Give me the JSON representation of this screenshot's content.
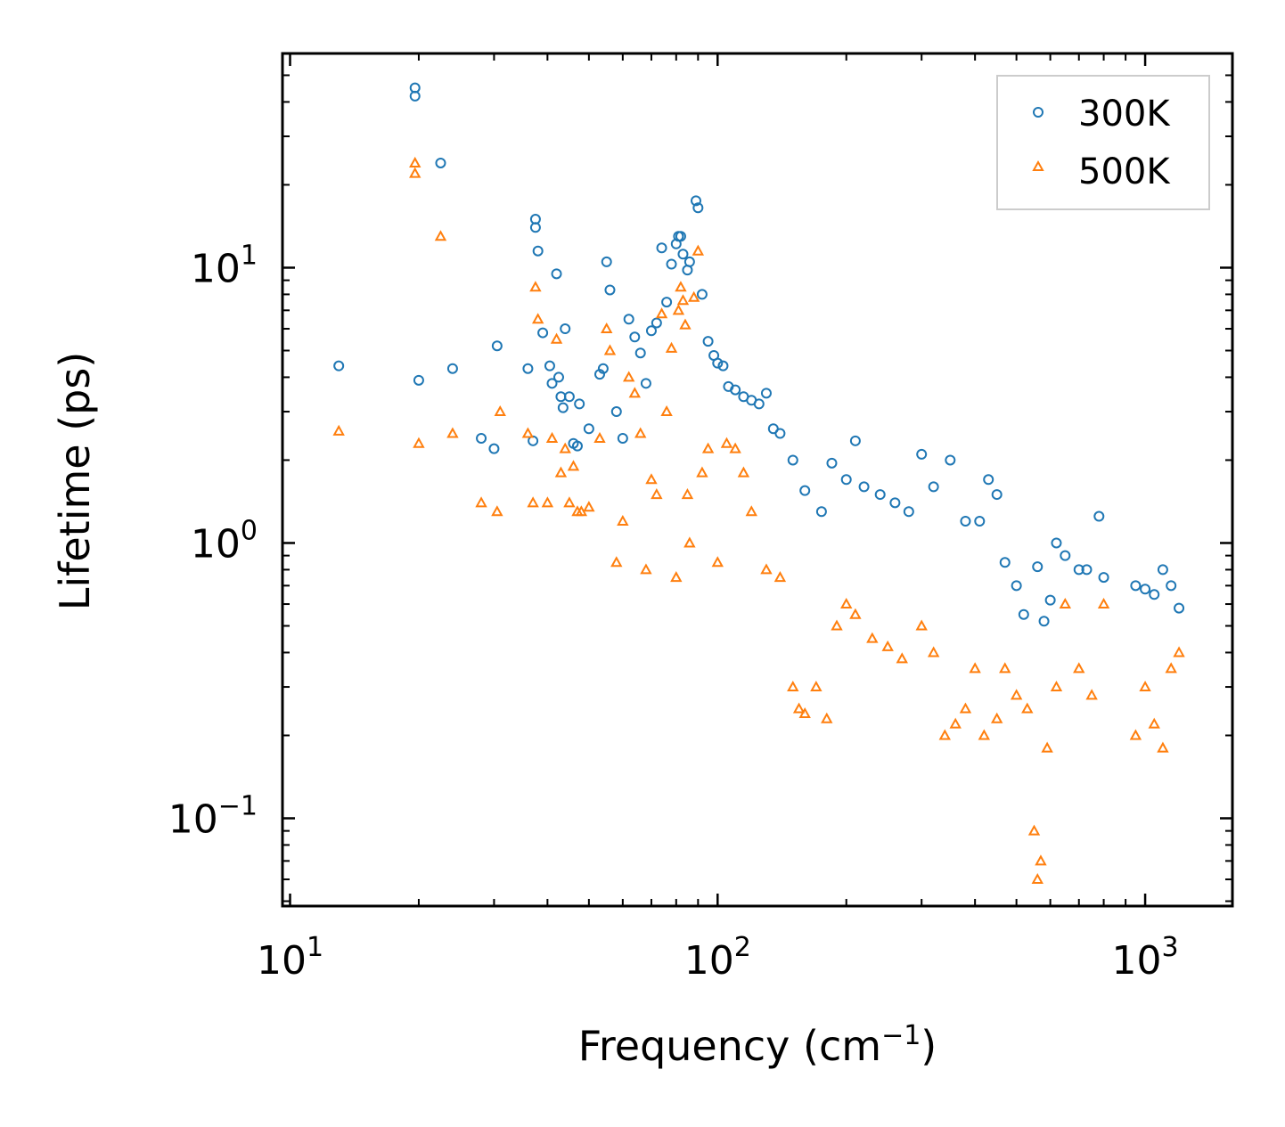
{
  "chart_data": {
    "type": "scatter",
    "title": "",
    "xlabel": "Frequency (cm",
    "xlabel_sup": "−1",
    "xlabel_close": ")",
    "ylabel": "Lifetime (ps)",
    "xscale": "log",
    "yscale": "log",
    "xlim": [
      9.6,
      1600
    ],
    "ylim": [
      0.048,
      60
    ],
    "x_ticks": [
      {
        "value": 10,
        "base": "10",
        "exp": "1"
      },
      {
        "value": 100,
        "base": "10",
        "exp": "2"
      },
      {
        "value": 1000,
        "base": "10",
        "exp": "3"
      }
    ],
    "y_ticks": [
      {
        "value": 0.1,
        "base": "10",
        "exp": "−1"
      },
      {
        "value": 1,
        "base": "10",
        "exp": "0"
      },
      {
        "value": 10,
        "base": "10",
        "exp": "1"
      }
    ],
    "legend_position": "top-right",
    "series": [
      {
        "name": "300K",
        "color": "#1f77b4",
        "marker": "circle",
        "points": [
          [
            13,
            4.4
          ],
          [
            19.6,
            45
          ],
          [
            19.6,
            42
          ],
          [
            20,
            3.9
          ],
          [
            22.5,
            24
          ],
          [
            24,
            4.3
          ],
          [
            28,
            2.4
          ],
          [
            30,
            2.2
          ],
          [
            30.5,
            5.2
          ],
          [
            36,
            4.3
          ],
          [
            37,
            2.35
          ],
          [
            37.5,
            15
          ],
          [
            37.5,
            14
          ],
          [
            38,
            11.5
          ],
          [
            39,
            5.8
          ],
          [
            40.5,
            4.4
          ],
          [
            41,
            3.8
          ],
          [
            42,
            9.5
          ],
          [
            42.5,
            4.0
          ],
          [
            43,
            3.4
          ],
          [
            43.5,
            3.1
          ],
          [
            44,
            6.0
          ],
          [
            45,
            3.4
          ],
          [
            46,
            2.3
          ],
          [
            47,
            2.25
          ],
          [
            47.5,
            3.2
          ],
          [
            50,
            2.6
          ],
          [
            53,
            4.1
          ],
          [
            54,
            4.3
          ],
          [
            55,
            10.5
          ],
          [
            56,
            8.3
          ],
          [
            58,
            3.0
          ],
          [
            60,
            2.4
          ],
          [
            62,
            6.5
          ],
          [
            64,
            5.6
          ],
          [
            66,
            4.9
          ],
          [
            68,
            3.8
          ],
          [
            70,
            5.9
          ],
          [
            72,
            6.3
          ],
          [
            74,
            11.8
          ],
          [
            76,
            7.5
          ],
          [
            78,
            10.3
          ],
          [
            80,
            12.2
          ],
          [
            81,
            13
          ],
          [
            82,
            13
          ],
          [
            83,
            11.2
          ],
          [
            85,
            9.8
          ],
          [
            86,
            10.5
          ],
          [
            89,
            17.5
          ],
          [
            90,
            16.5
          ],
          [
            92,
            8.0
          ],
          [
            95,
            5.4
          ],
          [
            98,
            4.8
          ],
          [
            100,
            4.5
          ],
          [
            103,
            4.4
          ],
          [
            106,
            3.7
          ],
          [
            110,
            3.6
          ],
          [
            115,
            3.4
          ],
          [
            120,
            3.3
          ],
          [
            125,
            3.2
          ],
          [
            130,
            3.5
          ],
          [
            135,
            2.6
          ],
          [
            140,
            2.5
          ],
          [
            150,
            2.0
          ],
          [
            160,
            1.55
          ],
          [
            175,
            1.3
          ],
          [
            185,
            1.95
          ],
          [
            200,
            1.7
          ],
          [
            210,
            2.35
          ],
          [
            220,
            1.6
          ],
          [
            240,
            1.5
          ],
          [
            260,
            1.4
          ],
          [
            280,
            1.3
          ],
          [
            300,
            2.1
          ],
          [
            320,
            1.6
          ],
          [
            350,
            2.0
          ],
          [
            380,
            1.2
          ],
          [
            410,
            1.2
          ],
          [
            430,
            1.7
          ],
          [
            450,
            1.5
          ],
          [
            470,
            0.85
          ],
          [
            500,
            0.7
          ],
          [
            520,
            0.55
          ],
          [
            560,
            0.82
          ],
          [
            580,
            0.52
          ],
          [
            600,
            0.62
          ],
          [
            620,
            1.0
          ],
          [
            650,
            0.9
          ],
          [
            700,
            0.8
          ],
          [
            730,
            0.8
          ],
          [
            780,
            1.25
          ],
          [
            800,
            0.75
          ],
          [
            950,
            0.7
          ],
          [
            1000,
            0.68
          ],
          [
            1050,
            0.65
          ],
          [
            1100,
            0.8
          ],
          [
            1150,
            0.7
          ],
          [
            1200,
            0.58
          ]
        ]
      },
      {
        "name": "500K",
        "color": "#ff7f0e",
        "marker": "triangle",
        "points": [
          [
            13,
            2.55
          ],
          [
            19.6,
            24
          ],
          [
            19.6,
            22
          ],
          [
            20,
            2.3
          ],
          [
            22.5,
            13
          ],
          [
            24,
            2.5
          ],
          [
            28,
            1.4
          ],
          [
            30.5,
            1.3
          ],
          [
            31,
            3.0
          ],
          [
            36,
            2.5
          ],
          [
            37,
            1.4
          ],
          [
            37.5,
            8.5
          ],
          [
            38,
            6.5
          ],
          [
            40,
            1.4
          ],
          [
            41,
            2.4
          ],
          [
            42,
            5.5
          ],
          [
            43,
            1.8
          ],
          [
            44,
            2.2
          ],
          [
            45,
            1.4
          ],
          [
            46,
            1.9
          ],
          [
            47,
            1.3
          ],
          [
            48,
            1.3
          ],
          [
            50,
            1.35
          ],
          [
            53,
            2.4
          ],
          [
            55,
            6.0
          ],
          [
            56,
            5.0
          ],
          [
            58,
            0.85
          ],
          [
            60,
            1.2
          ],
          [
            62,
            4.0
          ],
          [
            64,
            3.5
          ],
          [
            66,
            2.5
          ],
          [
            68,
            0.8
          ],
          [
            70,
            1.7
          ],
          [
            72,
            1.5
          ],
          [
            74,
            6.8
          ],
          [
            76,
            3.0
          ],
          [
            78,
            5.1
          ],
          [
            80,
            0.75
          ],
          [
            81,
            7.0
          ],
          [
            82,
            8.5
          ],
          [
            83,
            7.6
          ],
          [
            84,
            6.2
          ],
          [
            85,
            1.5
          ],
          [
            86,
            1.0
          ],
          [
            88,
            7.8
          ],
          [
            90,
            11.5
          ],
          [
            92,
            1.8
          ],
          [
            95,
            2.2
          ],
          [
            100,
            0.85
          ],
          [
            105,
            2.3
          ],
          [
            110,
            2.2
          ],
          [
            115,
            1.8
          ],
          [
            120,
            1.3
          ],
          [
            130,
            0.8
          ],
          [
            140,
            0.75
          ],
          [
            150,
            0.3
          ],
          [
            155,
            0.25
          ],
          [
            160,
            0.24
          ],
          [
            170,
            0.3
          ],
          [
            180,
            0.23
          ],
          [
            190,
            0.5
          ],
          [
            200,
            0.6
          ],
          [
            210,
            0.55
          ],
          [
            230,
            0.45
          ],
          [
            250,
            0.42
          ],
          [
            270,
            0.38
          ],
          [
            300,
            0.5
          ],
          [
            320,
            0.4
          ],
          [
            340,
            0.2
          ],
          [
            360,
            0.22
          ],
          [
            380,
            0.25
          ],
          [
            400,
            0.35
          ],
          [
            420,
            0.2
          ],
          [
            450,
            0.23
          ],
          [
            470,
            0.35
          ],
          [
            500,
            0.28
          ],
          [
            530,
            0.25
          ],
          [
            550,
            0.09
          ],
          [
            560,
            0.06
          ],
          [
            570,
            0.07
          ],
          [
            590,
            0.18
          ],
          [
            620,
            0.3
          ],
          [
            650,
            0.6
          ],
          [
            700,
            0.35
          ],
          [
            750,
            0.28
          ],
          [
            800,
            0.6
          ],
          [
            950,
            0.2
          ],
          [
            1000,
            0.3
          ],
          [
            1050,
            0.22
          ],
          [
            1100,
            0.18
          ],
          [
            1150,
            0.35
          ],
          [
            1200,
            0.4
          ]
        ]
      }
    ]
  }
}
